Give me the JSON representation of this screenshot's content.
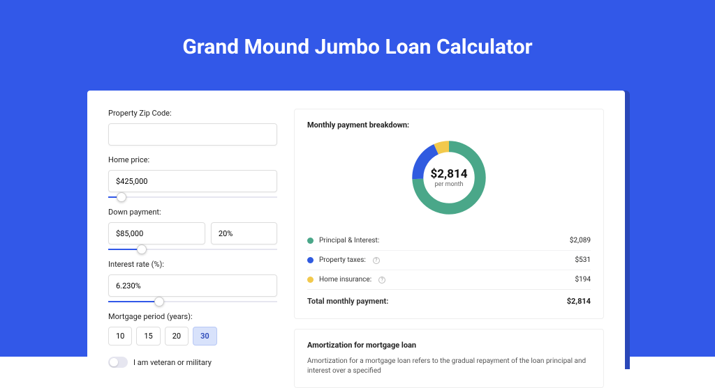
{
  "page": {
    "title": "Grand Mound Jumbo Loan Calculator",
    "background_color": "#3258e8",
    "card_shadow_color": "#2a47b8"
  },
  "form": {
    "zip": {
      "label": "Property Zip Code:",
      "value": ""
    },
    "home_price": {
      "label": "Home price:",
      "value": "$425,000",
      "slider_pct": 8
    },
    "down_payment": {
      "label": "Down payment:",
      "value": "$85,000",
      "pct_value": "20%",
      "slider_pct": 20
    },
    "interest_rate": {
      "label": "Interest rate (%):",
      "value": "6.230%",
      "slider_pct": 30
    },
    "mortgage_period": {
      "label": "Mortgage period (years):",
      "options": [
        "10",
        "15",
        "20",
        "30"
      ],
      "active_index": 3
    },
    "veteran": {
      "label": "I am veteran or military",
      "checked": false
    }
  },
  "breakdown": {
    "title": "Monthly payment breakdown:",
    "donut": {
      "amount": "$2,814",
      "sub": "per month",
      "segments": [
        {
          "name": "principal_interest",
          "pct": 74.2,
          "color": "#4aa789"
        },
        {
          "name": "property_taxes",
          "pct": 18.9,
          "color": "#305be0"
        },
        {
          "name": "home_insurance",
          "pct": 6.9,
          "color": "#f2c94c"
        }
      ],
      "ring_width": 16
    },
    "items": [
      {
        "label": "Principal & Interest:",
        "value": "$2,089",
        "color": "#4aa789",
        "info": false
      },
      {
        "label": "Property taxes:",
        "value": "$531",
        "color": "#305be0",
        "info": true
      },
      {
        "label": "Home insurance:",
        "value": "$194",
        "color": "#f2c94c",
        "info": true
      }
    ],
    "total": {
      "label": "Total monthly payment:",
      "value": "$2,814"
    }
  },
  "amortization": {
    "title": "Amortization for mortgage loan",
    "text": "Amortization for a mortgage loan refers to the gradual repayment of the loan principal and interest over a specified"
  }
}
